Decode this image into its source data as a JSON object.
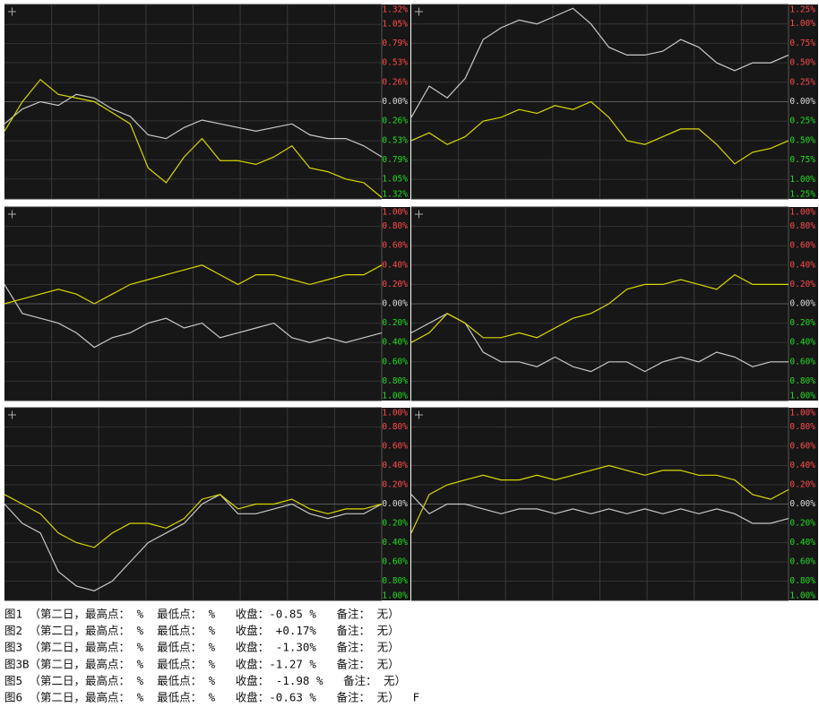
{
  "chart_data": [
    {
      "type": "line",
      "ylim": [
        -1.32,
        1.32
      ],
      "yticks": [
        {
          "value": 1.32,
          "label": "1.32%"
        },
        {
          "value": 1.05,
          "label": "1.05%"
        },
        {
          "value": 0.79,
          "label": "0.79%"
        },
        {
          "value": 0.53,
          "label": "0.53%"
        },
        {
          "value": 0.26,
          "label": "0.26%"
        },
        {
          "value": 0,
          "label": "0.00%"
        },
        {
          "value": -0.26,
          "label": "0.26%"
        },
        {
          "value": -0.53,
          "label": "0.53%"
        },
        {
          "value": -0.79,
          "label": "0.79%"
        },
        {
          "value": -1.05,
          "label": "1.05%"
        },
        {
          "value": -1.32,
          "label": "1.32%"
        }
      ],
      "grid": true,
      "series": [
        {
          "color": "#c8c8c8",
          "values": [
            -0.3,
            -0.1,
            0.0,
            -0.05,
            0.1,
            0.05,
            -0.1,
            -0.2,
            -0.45,
            -0.5,
            -0.35,
            -0.25,
            -0.3,
            -0.35,
            -0.4,
            -0.35,
            -0.3,
            -0.45,
            -0.5,
            -0.5,
            -0.6,
            -0.75
          ]
        },
        {
          "color": "#d8d800",
          "values": [
            -0.4,
            0.0,
            0.3,
            0.1,
            0.05,
            0.0,
            -0.15,
            -0.3,
            -0.9,
            -1.1,
            -0.75,
            -0.5,
            -0.8,
            -0.8,
            -0.85,
            -0.75,
            -0.6,
            -0.9,
            -0.95,
            -1.05,
            -1.1,
            -1.3
          ]
        }
      ]
    },
    {
      "type": "line",
      "ylim": [
        -1.25,
        1.25
      ],
      "yticks": [
        {
          "value": 1.25,
          "label": "1.25%"
        },
        {
          "value": 1.0,
          "label": "1.00%"
        },
        {
          "value": 0.75,
          "label": "0.75%"
        },
        {
          "value": 0.5,
          "label": "0.50%"
        },
        {
          "value": 0.25,
          "label": "0.25%"
        },
        {
          "value": 0,
          "label": "0.00%"
        },
        {
          "value": -0.25,
          "label": "0.25%"
        },
        {
          "value": -0.5,
          "label": "0.50%"
        },
        {
          "value": -0.75,
          "label": "0.75%"
        },
        {
          "value": -1.0,
          "label": "1.00%"
        },
        {
          "value": -1.25,
          "label": "1.25%"
        }
      ],
      "grid": true,
      "series": [
        {
          "color": "#c8c8c8",
          "values": [
            -0.2,
            0.2,
            0.05,
            0.3,
            0.8,
            0.95,
            1.05,
            1.0,
            1.1,
            1.2,
            1.0,
            0.7,
            0.6,
            0.6,
            0.65,
            0.8,
            0.7,
            0.5,
            0.4,
            0.5,
            0.5,
            0.6
          ]
        },
        {
          "color": "#d8d800",
          "values": [
            -0.5,
            -0.4,
            -0.55,
            -0.45,
            -0.25,
            -0.2,
            -0.1,
            -0.15,
            -0.05,
            -0.1,
            0.0,
            -0.2,
            -0.5,
            -0.55,
            -0.45,
            -0.35,
            -0.35,
            -0.55,
            -0.8,
            -0.65,
            -0.6,
            -0.5
          ]
        }
      ]
    },
    {
      "type": "line",
      "ylim": [
        -1.0,
        1.0
      ],
      "yticks": [
        {
          "value": 1.0,
          "label": "1.00%"
        },
        {
          "value": 0.8,
          "label": "0.80%"
        },
        {
          "value": 0.6,
          "label": "0.60%"
        },
        {
          "value": 0.4,
          "label": "0.40%"
        },
        {
          "value": 0.2,
          "label": "0.20%"
        },
        {
          "value": 0,
          "label": "0.00%"
        },
        {
          "value": -0.2,
          "label": "0.20%"
        },
        {
          "value": -0.4,
          "label": "0.40%"
        },
        {
          "value": -0.6,
          "label": "0.60%"
        },
        {
          "value": -0.8,
          "label": "0.80%"
        },
        {
          "value": -1.0,
          "label": "1.00%"
        }
      ],
      "grid": true,
      "series": [
        {
          "color": "#c8c8c8",
          "values": [
            0.2,
            -0.1,
            -0.15,
            -0.2,
            -0.3,
            -0.45,
            -0.35,
            -0.3,
            -0.2,
            -0.15,
            -0.25,
            -0.2,
            -0.35,
            -0.3,
            -0.25,
            -0.2,
            -0.35,
            -0.4,
            -0.35,
            -0.4,
            -0.35,
            -0.3
          ]
        },
        {
          "color": "#d8d800",
          "values": [
            0.0,
            0.05,
            0.1,
            0.15,
            0.1,
            0.0,
            0.1,
            0.2,
            0.25,
            0.3,
            0.35,
            0.4,
            0.3,
            0.2,
            0.3,
            0.3,
            0.25,
            0.2,
            0.25,
            0.3,
            0.3,
            0.4
          ]
        }
      ]
    },
    {
      "type": "line",
      "ylim": [
        -1.0,
        1.0
      ],
      "yticks": [
        {
          "value": 1.0,
          "label": "1.00%"
        },
        {
          "value": 0.8,
          "label": "0.80%"
        },
        {
          "value": 0.6,
          "label": "0.60%"
        },
        {
          "value": 0.4,
          "label": "0.40%"
        },
        {
          "value": 0.2,
          "label": "0.20%"
        },
        {
          "value": 0,
          "label": "0.00%"
        },
        {
          "value": -0.2,
          "label": "0.20%"
        },
        {
          "value": -0.4,
          "label": "0.40%"
        },
        {
          "value": -0.6,
          "label": "0.60%"
        },
        {
          "value": -0.8,
          "label": "0.80%"
        },
        {
          "value": -1.0,
          "label": "1.00%"
        }
      ],
      "grid": true,
      "series": [
        {
          "color": "#c8c8c8",
          "values": [
            -0.3,
            -0.2,
            -0.1,
            -0.2,
            -0.5,
            -0.6,
            -0.6,
            -0.65,
            -0.55,
            -0.65,
            -0.7,
            -0.6,
            -0.6,
            -0.7,
            -0.6,
            -0.55,
            -0.6,
            -0.5,
            -0.55,
            -0.65,
            -0.6,
            -0.6
          ]
        },
        {
          "color": "#d8d800",
          "values": [
            -0.4,
            -0.3,
            -0.1,
            -0.2,
            -0.35,
            -0.35,
            -0.3,
            -0.35,
            -0.25,
            -0.15,
            -0.1,
            0.0,
            0.15,
            0.2,
            0.2,
            0.25,
            0.2,
            0.15,
            0.3,
            0.2,
            0.2,
            0.2
          ]
        }
      ]
    },
    {
      "type": "line",
      "ylim": [
        -1.0,
        1.0
      ],
      "yticks": [
        {
          "value": 1.0,
          "label": "1.00%"
        },
        {
          "value": 0.8,
          "label": "0.80%"
        },
        {
          "value": 0.6,
          "label": "0.60%"
        },
        {
          "value": 0.4,
          "label": "0.40%"
        },
        {
          "value": 0.2,
          "label": "0.20%"
        },
        {
          "value": 0,
          "label": "0.00%"
        },
        {
          "value": -0.2,
          "label": "0.20%"
        },
        {
          "value": -0.4,
          "label": "0.40%"
        },
        {
          "value": -0.6,
          "label": "0.60%"
        },
        {
          "value": -0.8,
          "label": "0.80%"
        },
        {
          "value": -1.0,
          "label": "1.00%"
        }
      ],
      "grid": true,
      "series": [
        {
          "color": "#c8c8c8",
          "values": [
            0.0,
            -0.2,
            -0.3,
            -0.7,
            -0.85,
            -0.9,
            -0.8,
            -0.6,
            -0.4,
            -0.3,
            -0.2,
            0.0,
            0.1,
            -0.1,
            -0.1,
            -0.05,
            0.0,
            -0.1,
            -0.15,
            -0.1,
            -0.1,
            0.0
          ]
        },
        {
          "color": "#d8d800",
          "values": [
            0.1,
            0.0,
            -0.1,
            -0.3,
            -0.4,
            -0.45,
            -0.3,
            -0.2,
            -0.2,
            -0.25,
            -0.15,
            0.05,
            0.1,
            -0.05,
            0.0,
            0.0,
            0.05,
            -0.05,
            -0.1,
            -0.05,
            -0.05,
            0.0
          ]
        }
      ]
    },
    {
      "type": "line",
      "ylim": [
        -1.0,
        1.0
      ],
      "yticks": [
        {
          "value": 1.0,
          "label": "1.00%"
        },
        {
          "value": 0.8,
          "label": "0.80%"
        },
        {
          "value": 0.6,
          "label": "0.60%"
        },
        {
          "value": 0.4,
          "label": "0.40%"
        },
        {
          "value": 0.2,
          "label": "0.20%"
        },
        {
          "value": 0,
          "label": "0.00%"
        },
        {
          "value": -0.2,
          "label": "0.20%"
        },
        {
          "value": -0.4,
          "label": "0.40%"
        },
        {
          "value": -0.6,
          "label": "0.60%"
        },
        {
          "value": -0.8,
          "label": "0.80%"
        },
        {
          "value": -1.0,
          "label": "1.00%"
        }
      ],
      "grid": true,
      "series": [
        {
          "color": "#c8c8c8",
          "values": [
            0.1,
            -0.1,
            0.0,
            0.0,
            -0.05,
            -0.1,
            -0.05,
            -0.05,
            -0.1,
            -0.05,
            -0.1,
            -0.05,
            -0.1,
            -0.05,
            -0.1,
            -0.05,
            -0.1,
            -0.05,
            -0.1,
            -0.2,
            -0.2,
            -0.15
          ]
        },
        {
          "color": "#d8d800",
          "values": [
            -0.3,
            0.1,
            0.2,
            0.25,
            0.3,
            0.25,
            0.25,
            0.3,
            0.25,
            0.3,
            0.35,
            0.4,
            0.35,
            0.3,
            0.35,
            0.35,
            0.3,
            0.3,
            0.25,
            0.1,
            0.05,
            0.15
          ]
        }
      ]
    }
  ],
  "captions": [
    "图1 （第二日，最高点： %  最低点： %   收盘：-0.85 %   备注： 无）",
    "图2 （第二日，最高点： %  最低点： %   收盘： +0.17%   备注： 无）",
    "图3 （第二日，最高点： %  最低点： %   收盘： -1.30%   备注： 无）",
    "图3B（第二日，最高点： %  最低点： %   收盘：-1.27 %   备注： 无）",
    "图5 （第二日，最高点： %  最低点： %   收盘： -1.98 %   备注： 无）",
    "图6 （第二日，最高点： %  最低点： %   收盘：-0.63 %   备注： 无）  F"
  ]
}
